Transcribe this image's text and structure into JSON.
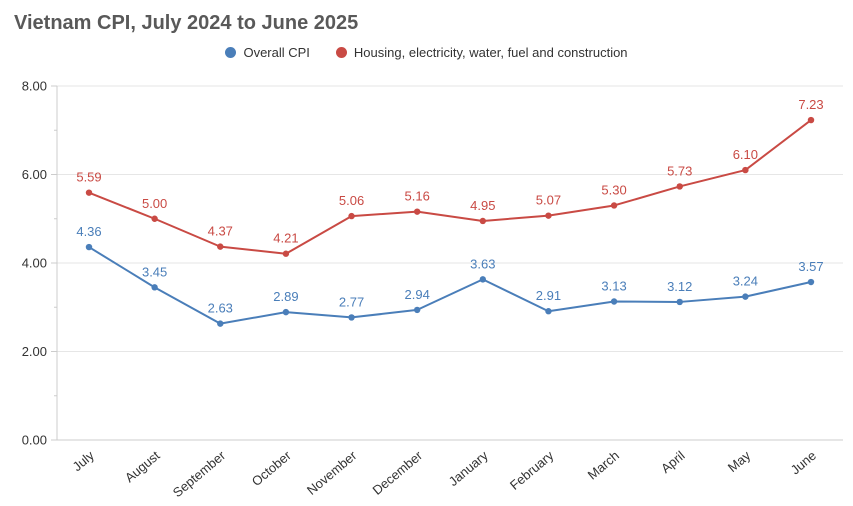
{
  "title": "Vietnam CPI, July 2024 to June 2025",
  "colors": {
    "title": "#595959",
    "grid": "#e6e6e6",
    "axis": "#cccccc",
    "tick_text": "#333333",
    "background": "#ffffff"
  },
  "chart_data": {
    "type": "line",
    "title": "Vietnam CPI, July 2024 to June 2025",
    "categories": [
      "July",
      "August",
      "September",
      "October",
      "November",
      "December",
      "January",
      "February",
      "March",
      "April",
      "May",
      "June"
    ],
    "series": [
      {
        "name": "Overall CPI",
        "color": "#4a7eb9",
        "values": [
          4.36,
          3.45,
          2.63,
          2.89,
          2.77,
          2.94,
          3.63,
          2.91,
          3.13,
          3.12,
          3.24,
          3.57
        ]
      },
      {
        "name": "Housing, electricity, water, fuel and construction",
        "color": "#c94a44",
        "values": [
          5.59,
          5.0,
          4.37,
          4.21,
          5.06,
          5.16,
          4.95,
          5.07,
          5.3,
          5.73,
          6.1,
          7.23
        ]
      }
    ],
    "xlabel": "",
    "ylabel": "",
    "ylim": [
      0,
      8
    ],
    "yticks": [
      0,
      2,
      4,
      6,
      8
    ],
    "ytick_labels": [
      "0.00",
      "2.00",
      "4.00",
      "6.00",
      "8.00"
    ],
    "grid": true,
    "legend_position": "top",
    "data_labels": true,
    "x_label_rotation": -40
  }
}
